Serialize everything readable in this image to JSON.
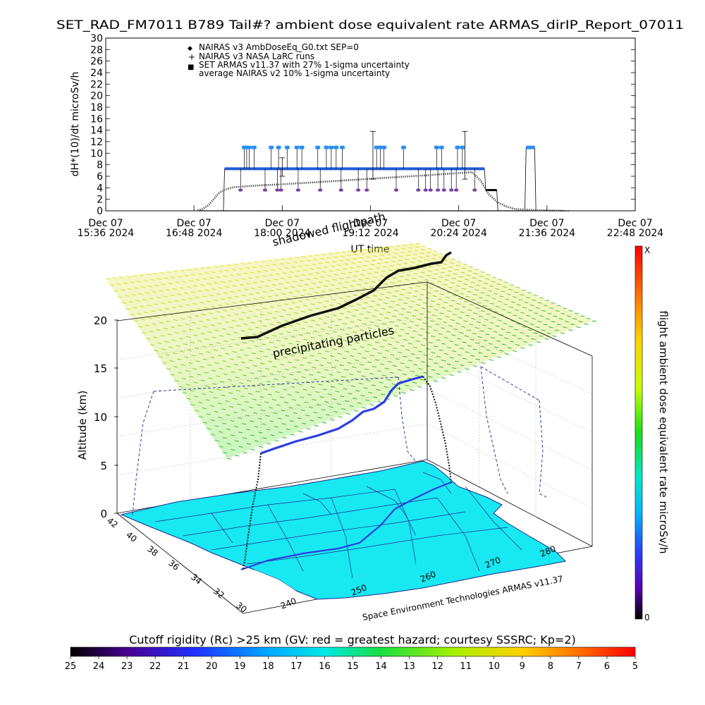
{
  "title": "SET_RAD_FM7011  B789 Tail#? ambient dose equivalent rate ARMAS_dirIP_Report_07011",
  "colors": {
    "armas_blue": "#1e5bd6",
    "armas_light_blue": "#2c8ef2",
    "nairas_gray": "#555555",
    "purple": "#7a3fa6",
    "map_cyan": "#18e8f2",
    "map_outline": "#1c2a8a",
    "flight_blue": "#2a3fe0",
    "shadow_black": "#111111"
  },
  "chart_data": [
    {
      "type": "line",
      "ylabel": "dH*(10)/dt microSv/h",
      "xlabel": "UT time",
      "ylim": [
        0,
        30
      ],
      "ytick_step": 2,
      "x_ticks": [
        {
          "line1": "Dec 07",
          "line2": "15:36 2024"
        },
        {
          "line1": "Dec 07",
          "line2": "16:48 2024"
        },
        {
          "line1": "Dec 07",
          "line2": "18:00 2024"
        },
        {
          "line1": "Dec 07",
          "line2": "19:12 2024"
        },
        {
          "line1": "Dec 07",
          "line2": "20:24 2024"
        },
        {
          "line1": "Dec 07",
          "line2": "21:36 2024"
        },
        {
          "line1": "Dec 07",
          "line2": "22:48 2024"
        }
      ],
      "legend": [
        {
          "marker": "◆",
          "label": "NAIRAS v3 AmbDoseEq_G0.txt SEP=0"
        },
        {
          "marker": "+",
          "label": "NAIRAS v3 NASA LaRC runs"
        },
        {
          "marker": "■",
          "label": "SET ARMAS v11.37 with 27% 1-sigma uncertainty"
        },
        {
          "marker": "",
          "label": "average NAIRAS v2 10% 1-sigma uncertainty"
        }
      ],
      "series": [
        {
          "name": "SET ARMAS v11.37 with 27% 1-sigma uncertainty",
          "points": [
            [
              "17:12",
              0
            ],
            [
              "17:13",
              7.3
            ],
            [
              "18:00",
              7.3
            ],
            [
              "19:00",
              7.3
            ],
            [
              "20:00",
              7.3
            ],
            [
              "20:45",
              7.3
            ],
            [
              "20:46",
              3.6
            ],
            [
              "20:55",
              3.6
            ],
            [
              "20:56",
              0
            ],
            [
              "21:18",
              0
            ],
            [
              "21:19",
              11.0
            ],
            [
              "21:26",
              11.0
            ],
            [
              "21:27",
              0
            ]
          ],
          "spikes_to_11": [
            "17:29",
            "17:31",
            "17:33",
            "17:37",
            "17:51",
            "17:57",
            "18:04",
            "18:12",
            "18:16",
            "18:29",
            "18:36",
            "18:40",
            "18:44",
            "18:49",
            "19:17",
            "19:20",
            "19:23",
            "19:39",
            "20:06",
            "20:10",
            "20:23",
            "20:27"
          ],
          "dips_to_3_6": [
            "17:26",
            "17:46",
            "17:56",
            "17:59",
            "18:13",
            "18:31",
            "18:48",
            "19:02",
            "19:09",
            "19:33",
            "19:51",
            "19:57",
            "20:01",
            "20:07",
            "20:12",
            "20:18",
            "20:22",
            "20:37"
          ]
        },
        {
          "name": "NAIRAS v3 AmbDoseEq_G0.txt SEP=0",
          "points": [
            [
              "16:51",
              0.1
            ],
            [
              "16:55",
              0.3
            ],
            [
              "17:00",
              1.0
            ],
            [
              "17:04",
              2.0
            ],
            [
              "17:08",
              3.0
            ],
            [
              "17:12",
              3.6
            ],
            [
              "17:20",
              4.1
            ],
            [
              "17:40",
              4.4
            ],
            [
              "18:00",
              4.6
            ],
            [
              "18:30",
              5.0
            ],
            [
              "19:00",
              5.4
            ],
            [
              "19:30",
              5.8
            ],
            [
              "20:00",
              6.2
            ],
            [
              "20:20",
              6.5
            ],
            [
              "20:35",
              6.7
            ],
            [
              "20:42",
              5.2
            ],
            [
              "20:48",
              3.0
            ],
            [
              "20:55",
              1.6
            ],
            [
              "21:02",
              0.8
            ],
            [
              "21:10",
              0.3
            ],
            [
              "21:30",
              0.1
            ],
            [
              "21:50",
              0.0
            ]
          ]
        },
        {
          "name": "NAIRAS v3 NASA LaRC runs",
          "points": [
            [
              "16:51",
              0
            ],
            [
              "21:54",
              0
            ]
          ]
        }
      ],
      "error_bars": [
        {
          "x": "18:00",
          "low": 6,
          "high": 9.2
        },
        {
          "x": "19:14",
          "low": 5.5,
          "high": 13.8
        },
        {
          "x": "20:29",
          "low": 5.5,
          "high": 13.8
        }
      ]
    },
    {
      "type": "3d-trajectory",
      "zlabel": "Altitude (km)",
      "z_ticks": [
        "0",
        "5",
        "10",
        "15",
        "20"
      ],
      "lat_ticks": [
        "42",
        "40",
        "38",
        "36",
        "34",
        "32",
        "30"
      ],
      "lon_ticks": [
        "240",
        "250",
        "260",
        "270",
        "280"
      ],
      "annotation_path": "shadowed flightpath",
      "annotation_particles": "precipitating particles",
      "credit": "Space Environment Technologies ARMAS v11.37",
      "colorbar_label": "flight ambient dose equivalent rate microSv/h",
      "colorbar_top": "X",
      "colorbar_bottom": "0",
      "rigidity_caption": "Cutoff rigidity (Rc) >25 km (GV: red = greatest hazard; courtesy SSSRC; Kp=2)",
      "rigidity_ticks": [
        "25",
        "24",
        "23",
        "22",
        "21",
        "20",
        "19",
        "18",
        "17",
        "16",
        "15",
        "14",
        "13",
        "12",
        "11",
        "10",
        "9",
        "8",
        "7",
        "6",
        "5"
      ]
    }
  ]
}
